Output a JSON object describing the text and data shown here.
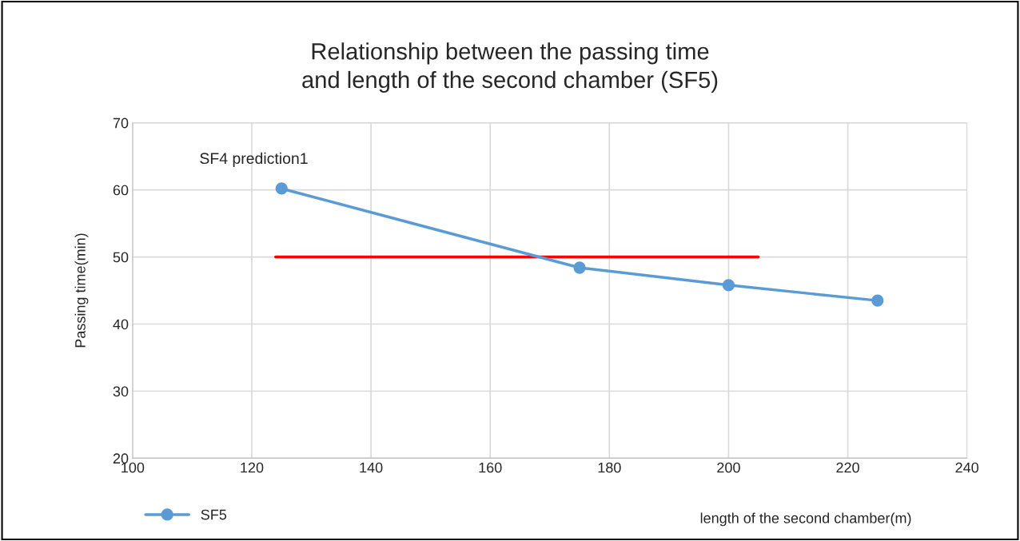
{
  "chart_data": {
    "type": "line",
    "title": "Relationship between the passing time\nand length of the second chamber (SF5)",
    "xlabel": "length of the second chamber(m)",
    "ylabel": "Passing time(min)",
    "series": [
      {
        "name": "SF5",
        "color": "#5b9bd5",
        "x": [
          125,
          175,
          200,
          225
        ],
        "values": [
          60.2,
          48.4,
          45.8,
          43.5
        ],
        "marker": "circle"
      },
      {
        "color": "#ff0000",
        "x": [
          124,
          205
        ],
        "values": [
          50,
          50
        ],
        "marker": "none"
      }
    ],
    "annotations": [
      "SF4 prediction1"
    ],
    "xlim": [
      100,
      240
    ],
    "xticks": [
      100,
      120,
      140,
      160,
      180,
      200,
      220,
      240
    ],
    "ylim": [
      20,
      70
    ],
    "yticks": [
      20,
      30,
      40,
      50,
      60,
      70
    ],
    "grid": true,
    "legend": "bottom left"
  }
}
